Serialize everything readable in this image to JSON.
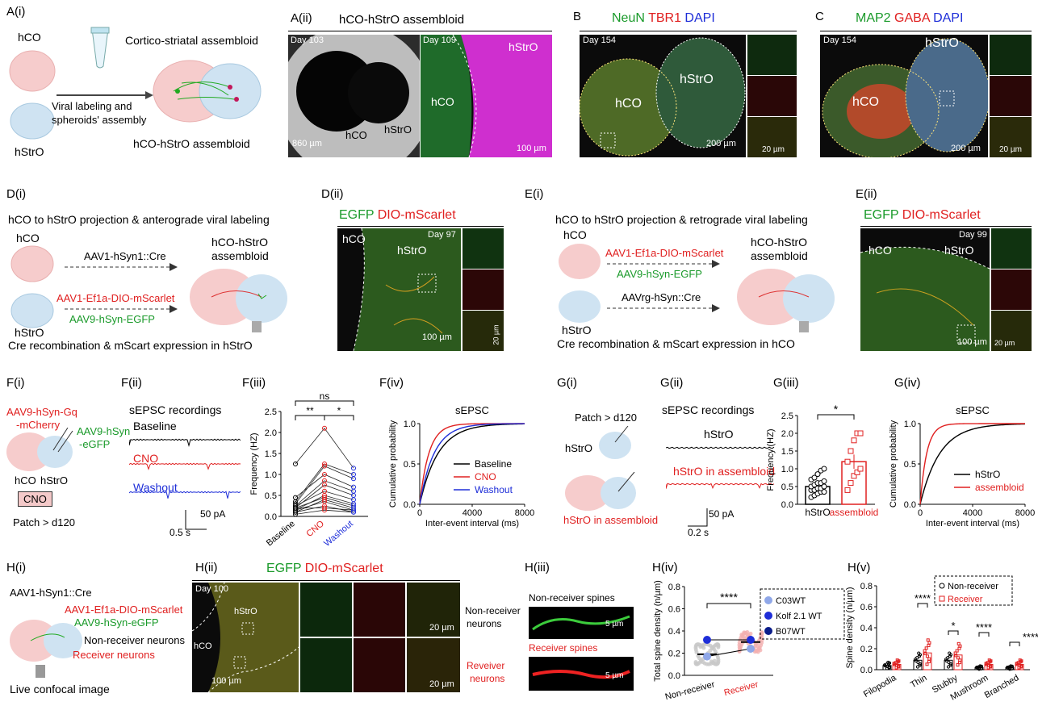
{
  "colors": {
    "green": "#1a9a2a",
    "red": "#e02020",
    "blue": "#1e2ed8",
    "pink": "#f4c9c9",
    "lightblue": "#cfe3f2"
  },
  "A": {
    "label_i": "A(i)",
    "label_ii": "A(ii)",
    "hco": "hCO",
    "hstro": "hStrO",
    "viral1": "Viral labeling and",
    "viral2": "spheroids' assembly",
    "title": "Cortico-striatal assembloid",
    "result": "hCO-hStrO assembloid",
    "panel_title": "hCO-hStrO assembloid",
    "day1": "Day 103",
    "day2": "Day 109",
    "scale1": "860 µm",
    "scale2": "100 µm",
    "lbl_hco": "hCO",
    "lbl_hstro": "hStrO",
    "lbl_hco2": "hCO",
    "lbl_hstro2": "hStrO"
  },
  "B": {
    "label": "B",
    "t1": "NeuN",
    "t2": "TBR1",
    "t3": "DAPI",
    "day": "Day 154",
    "hco": "hCO",
    "hstro": "hStrO",
    "s1": "200 µm",
    "s2": "20 µm"
  },
  "C": {
    "label": "C",
    "t1": "MAP2",
    "t2": "GABA",
    "t3": "DAPI",
    "day": "Day 154",
    "hco": "hCO",
    "hstro": "hStrO",
    "s1": "200 µm",
    "s2": "20 µm"
  },
  "D": {
    "label_i": "D(i)",
    "label_ii": "D(ii)",
    "title": "hCO to hStrO projection & anterograde viral labeling",
    "hco": "hCO",
    "hstro": "hStrO",
    "v1": "AAV1-hSyn1::Cre",
    "v2": "AAV1-Ef1a-DIO-mScarlet",
    "v3": "AAV9-hSyn-EGFP",
    "asm1": "hCO-hStrO",
    "asm2": "assembloid",
    "foot": "Cre recombination & mScart expression in hStrO",
    "t1": "EGFP",
    "t2": "DIO-mScarlet",
    "day": "Day 97",
    "m_hco": "hCO",
    "m_hstro": "hStrO",
    "s1": "100 µm",
    "s2": "20 µm"
  },
  "E": {
    "label_i": "E(i)",
    "label_ii": "E(ii)",
    "title": "hCO to hStrO projection & retrograde viral labeling",
    "hco": "hCO",
    "hstro": "hStrO",
    "v1": "AAV1-Ef1a-DIO-mScarlet",
    "v2": "AAV9-hSyn-EGFP",
    "v3": "AAVrg-hSyn::Cre",
    "asm1": "hCO-hStrO",
    "asm2": "assembloid",
    "foot": "Cre recombination & mScart expression in hCO",
    "t1": "EGFP",
    "t2": "DIO-mScarlet",
    "day": "Day 99",
    "m_hco": "hCO",
    "m_hstro": "hStrO",
    "s1": "100 µm",
    "s2": "20 µm"
  },
  "F": {
    "label_i": "F(i)",
    "label_ii": "F(ii)",
    "label_iii": "F(iii)",
    "label_iv": "F(iv)",
    "v1a": "AAV9-hSyn-Gq",
    "v1b": "-mCherry",
    "v2a": "AAV9-hSyn",
    "v2b": "-eGFP",
    "hco": "hCO",
    "hstro": "hStrO",
    "cno": "CNO",
    "patch": "Patch > d120",
    "rec_title": "sEPSC recordings",
    "baseline": "Baseline",
    "cno_lbl": "CNO",
    "washout": "Washout",
    "sb_pa": "50 pA",
    "sb_s": "0.5 s"
  },
  "G": {
    "label_i": "G(i)",
    "label_ii": "G(ii)",
    "label_iii": "G(iii)",
    "label_iv": "G(iv)",
    "patch": "Patch > d120",
    "hstro": "hStrO",
    "asm": "hStrO in assembloid",
    "rec_title": "sEPSC recordings",
    "tr1": "hStrO",
    "tr2": "hStrO in assembloid",
    "sb_pa": "50 pA",
    "sb_s": "0.2 s"
  },
  "H": {
    "label_i": "H(i)",
    "label_ii": "H(ii)",
    "label_iii": "H(iii)",
    "label_iv": "H(iv)",
    "label_v": "H(v)",
    "v1": "AAV1-hSyn1::Cre",
    "v2": "AAV1-Ef1a-DIO-mScarlet",
    "v3": "AAV9-hSyn-eGFP",
    "nonrec": "Non-receiver neurons",
    "rec": "Receiver neurons",
    "foot": "Live confocal image",
    "t1": "EGFP",
    "t2": "DIO-mScarlet",
    "day": "Day 100",
    "m_hstro": "hStrO",
    "m_hco": "hCO",
    "s1": "100 µm",
    "s2": "20 µm",
    "s3": "20 µm",
    "side1a": "Non-receiver",
    "side1b": "neurons",
    "side2a": "Reveiver",
    "side2b": "neurons",
    "spines1": "Non-receiver spines",
    "spines2": "Receiver spines",
    "sp_s1": "5 µm",
    "sp_s2": "5 µm"
  },
  "chart_data": [
    {
      "id": "F(iii)",
      "type": "scatter",
      "ylabel": "Frequency (HZ)",
      "ylim": [
        0,
        2.5
      ],
      "yticks": [
        "0.0",
        "0.5",
        "1.0",
        "1.5",
        "2.0",
        "2.5"
      ],
      "categories": [
        "Baseline",
        "CNO",
        "Washout"
      ],
      "pairs": [
        [
          1.25,
          2.1,
          1.15
        ],
        [
          0.35,
          1.25,
          1.0
        ],
        [
          0.3,
          1.2,
          0.9
        ],
        [
          0.45,
          1.0,
          0.7
        ],
        [
          0.25,
          0.85,
          0.6
        ],
        [
          0.2,
          0.75,
          0.5
        ],
        [
          0.25,
          0.6,
          0.4
        ],
        [
          0.15,
          0.5,
          0.3
        ],
        [
          0.2,
          0.45,
          0.25
        ],
        [
          0.1,
          0.4,
          0.2
        ],
        [
          0.15,
          0.35,
          0.15
        ],
        [
          0.1,
          0.25,
          0.1
        ],
        [
          0.2,
          0.2,
          0.15
        ],
        [
          0.05,
          0.15,
          0.1
        ]
      ],
      "sig": [
        {
          "a": 0,
          "b": 1,
          "text": "**"
        },
        {
          "a": 1,
          "b": 2,
          "text": "*"
        },
        {
          "a": 0,
          "b": 2,
          "text": "ns"
        }
      ]
    },
    {
      "id": "F(iv)",
      "type": "line",
      "title": "sEPSC",
      "ylabel": "Cumulative probability",
      "xlabel": "Inter-event interval (ms)",
      "xlim": [
        0,
        8000
      ],
      "ylim": [
        0,
        1
      ],
      "xticks": [
        "0",
        "4000",
        "8000"
      ],
      "yticks": [
        "0.0",
        "0.5",
        "1.0"
      ],
      "series": [
        {
          "name": "Baseline",
          "k": 1400
        },
        {
          "name": "CNO",
          "k": 700
        },
        {
          "name": "Washout",
          "k": 1100
        }
      ]
    },
    {
      "id": "G(iii)",
      "type": "bar",
      "ylabel": "Frequency (HZ)",
      "ylim": [
        0,
        2.5
      ],
      "yticks": [
        "0.0",
        "0.5",
        "1.0",
        "1.5",
        "2.0",
        "2.5"
      ],
      "categories": [
        "hStrO",
        "assembloid"
      ],
      "values": [
        0.5,
        1.2
      ],
      "errors": [
        0.07,
        0.2
      ],
      "points": [
        [
          0.2,
          0.25,
          0.3,
          0.35,
          0.35,
          0.4,
          0.4,
          0.45,
          0.45,
          0.5,
          0.5,
          0.55,
          0.6,
          0.6,
          0.65,
          0.7,
          0.75,
          0.85,
          0.95,
          1.0
        ],
        [
          0.4,
          0.6,
          0.8,
          0.9,
          1.0,
          1.2,
          1.5,
          1.8,
          2.0,
          2.0
        ]
      ],
      "sig": "*"
    },
    {
      "id": "G(iv)",
      "type": "line",
      "title": "sEPSC",
      "ylabel": "Cumulative probability",
      "xlabel": "Inter-event interval (ms)",
      "xlim": [
        0,
        8000
      ],
      "ylim": [
        0,
        1
      ],
      "xticks": [
        "0",
        "4000",
        "8000"
      ],
      "yticks": [
        "0.0",
        "0.5",
        "1.0"
      ],
      "series": [
        {
          "name": "hStrO",
          "k": 1500
        },
        {
          "name": "assembloid",
          "k": 500
        }
      ]
    },
    {
      "id": "H(iv)",
      "type": "scatter",
      "ylabel": "Total spine density (n/µm)",
      "ylim": [
        0,
        0.8
      ],
      "yticks": [
        "0.0",
        "0.2",
        "0.4",
        "0.6",
        "0.8"
      ],
      "categories": [
        "Non-receiver",
        "Receiver"
      ],
      "means": [
        0.19,
        0.3
      ],
      "lines": [
        [
          0.17,
          0.24,
          0.2
        ],
        [
          0.32,
          0.32,
          0.29
        ]
      ],
      "sig": "****",
      "legend": [
        "C03WT",
        "Kolf 2.1 WT",
        "B07WT"
      ]
    },
    {
      "id": "H(v)",
      "type": "bar",
      "ylabel": "Spine density (n/µm)",
      "ylim": [
        0,
        0.8
      ],
      "yticks": [
        "0.0",
        "0.2",
        "0.4",
        "0.6",
        "0.8"
      ],
      "categories": [
        "Filopodia",
        "Thin",
        "Stubby",
        "Mushroom",
        "Branched"
      ],
      "series": [
        {
          "name": "Non-receiver",
          "values": [
            0.04,
            0.09,
            0.09,
            0.02,
            0.02
          ]
        },
        {
          "name": "Receiver",
          "values": [
            0.05,
            0.16,
            0.14,
            0.05,
            0.05
          ]
        }
      ],
      "sig": [
        {
          "cat": 1,
          "text": "****"
        },
        {
          "cat": 2,
          "text": "*"
        },
        {
          "cat": 3,
          "text": "****"
        },
        {
          "cat": 4,
          "text": "****"
        }
      ]
    }
  ]
}
